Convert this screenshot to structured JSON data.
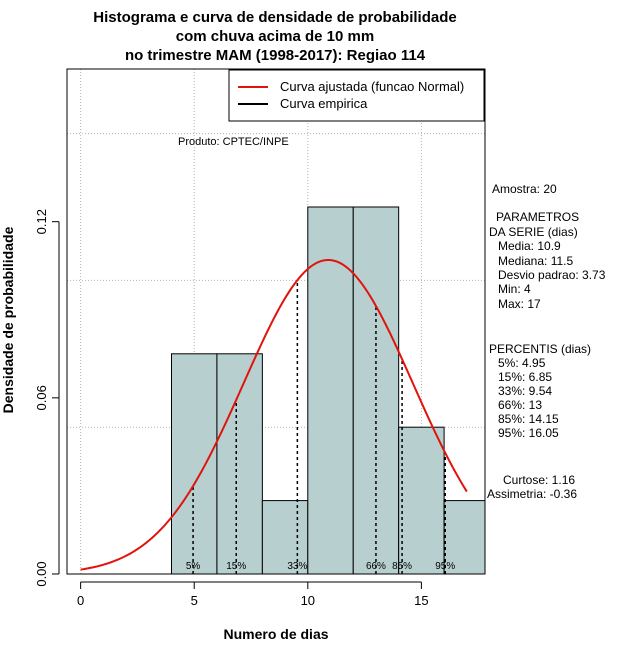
{
  "chart_data": {
    "type": "bar",
    "title_lines": [
      "Histograma e curva de densidade de probabilidade",
      "com chuva acima de 10 mm",
      "no trimestre MAM (1998-2017): Regiao 114"
    ],
    "xlabel": "Numero de dias",
    "ylabel": "Densidade de probabilidade",
    "xlim": [
      -0.6,
      17.8
    ],
    "ylim": [
      0,
      0.172
    ],
    "x_ticks": [
      0,
      5,
      10,
      15
    ],
    "y_ticks": [
      0.0,
      0.06,
      0.12
    ],
    "y_tick_labels": [
      "0.00",
      "0.06",
      "0.12"
    ],
    "grid_y": [
      0.0,
      0.05,
      0.1,
      0.15
    ],
    "grid_x": [
      0,
      5,
      10,
      15
    ],
    "bar_color": "#b7d0cf",
    "bars": [
      {
        "x0": 4,
        "x1": 6,
        "density": 0.075
      },
      {
        "x0": 6,
        "x1": 8,
        "density": 0.075
      },
      {
        "x0": 8,
        "x1": 10,
        "density": 0.025
      },
      {
        "x0": 10,
        "x1": 12,
        "density": 0.125
      },
      {
        "x0": 12,
        "x1": 14,
        "density": 0.125
      },
      {
        "x0": 14,
        "x1": 16,
        "density": 0.05
      },
      {
        "x0": 16,
        "x1": 18,
        "density": 0.025
      }
    ],
    "normal_curve": {
      "mean": 10.9,
      "sd": 3.73,
      "x_range": [
        0,
        17
      ],
      "color": "#e0140c"
    },
    "percentile_lines": [
      {
        "x": 4.95,
        "label": "5%"
      },
      {
        "x": 6.85,
        "label": "15%"
      },
      {
        "x": 9.54,
        "label": "33%"
      },
      {
        "x": 13,
        "label": "66%"
      },
      {
        "x": 14.15,
        "label": "85%"
      },
      {
        "x": 16.05,
        "label": "95%"
      }
    ],
    "legend": {
      "position": "top-right",
      "entries": [
        {
          "label": "Curva ajustada (funcao Normal)",
          "color": "#e0140c"
        },
        {
          "label": "Curva empirica",
          "color": "#000000"
        }
      ]
    },
    "annotation": "Produto: CPTEC/INPE",
    "side_panel": {
      "amostra": "Amostra: 20",
      "parametros_title_1": "PARAMETROS",
      "parametros_title_2": "DA SERIE (dias)",
      "media": "Media: 10.9",
      "mediana": "Mediana: 11.5",
      "desvio": "Desvio padrao: 3.73",
      "min": "Min: 4",
      "max": "Max: 17",
      "percentis_title": "PERCENTIS (dias)",
      "p5": "5%: 4.95",
      "p15": "15%: 6.85",
      "p33": "33%: 9.54",
      "p66": "66%: 13",
      "p85": "85%: 14.15",
      "p95": "95%: 16.05",
      "curtose": "Curtose: 1.16",
      "assimetria": "Assimetria: -0.36"
    }
  }
}
